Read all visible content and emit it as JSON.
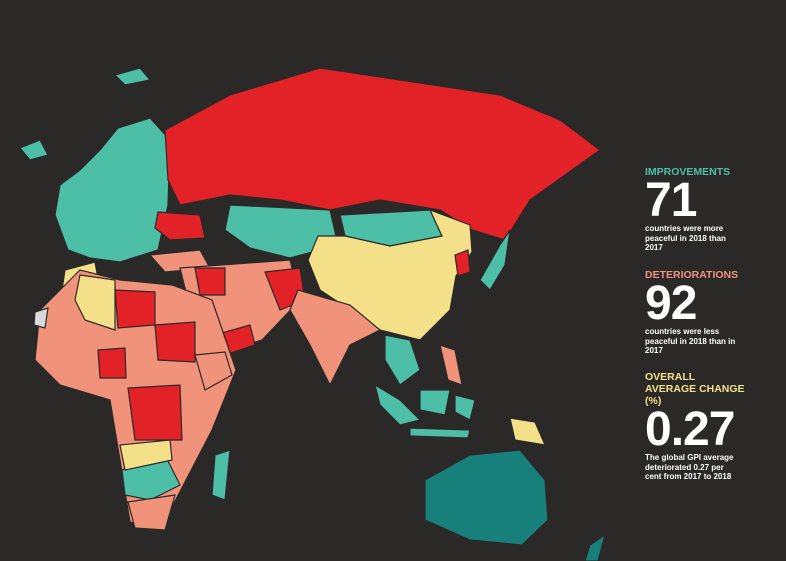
{
  "stats": [
    {
      "heading": "IMPROVEMENTS",
      "value": 71,
      "text": "countries were more peaceful in 2018 than 2017"
    },
    {
      "heading": "DETERIORATIONS",
      "value": 92,
      "text": "countries were less peaceful in 2018 than in 2017"
    },
    {
      "heading": "OVERALL AVERAGE CHANGE (%)",
      "value": 0.27,
      "text": "The global GPI average deteriorated 0.27 per cent from 2017 to 2018"
    }
  ]
}
